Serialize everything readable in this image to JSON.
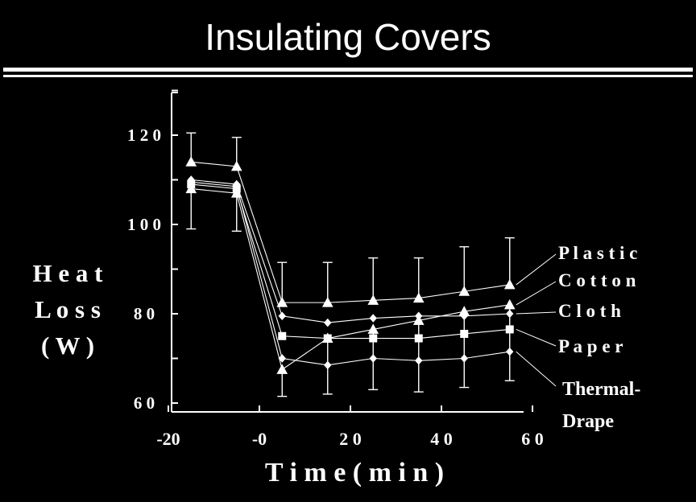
{
  "title": "Insulating Covers",
  "colors": {
    "background": "#000000",
    "foreground": "#ffffff"
  },
  "chart_data": {
    "type": "line",
    "title": "",
    "xlabel": "T i m e  ( m i n )",
    "ylabel_lines": [
      "H e a t",
      "L o s s",
      "( W )"
    ],
    "xlim": [
      -20,
      60
    ],
    "ylim": [
      58,
      130
    ],
    "xticks": [
      -20,
      0,
      20,
      40,
      60
    ],
    "xtick_labels": [
      "-20",
      "-0",
      "2 0",
      "4 0",
      "6 0"
    ],
    "yticks": [
      60,
      80,
      100,
      120
    ],
    "ytick_labels": [
      "6 0",
      "8 0",
      "1 0 0",
      "1 2 0"
    ],
    "grid": false,
    "legend": "right, labels at line ends",
    "x": [
      -15,
      -5,
      5,
      15,
      25,
      35,
      45,
      55
    ],
    "series": [
      {
        "name": "Plastic",
        "label_text": "P l a s t i c",
        "marker": "triangle",
        "values": [
          114,
          113,
          82.5,
          82.5,
          83,
          83.5,
          85,
          86.5
        ]
      },
      {
        "name": "Cotton",
        "label_text": "C o t t o n",
        "marker": "triangle",
        "values": [
          108,
          107,
          67.5,
          74.5,
          76.5,
          78.5,
          80.5,
          82
        ]
      },
      {
        "name": "Cloth",
        "label_text": "C l o t h",
        "marker": "diamond",
        "values": [
          110,
          109,
          79.5,
          78,
          79,
          79.5,
          79.5,
          80
        ]
      },
      {
        "name": "Paper",
        "label_text": "P a p e r",
        "marker": "square",
        "values": [
          109,
          108,
          75,
          74.5,
          74.5,
          74.5,
          75.5,
          76.5
        ]
      },
      {
        "name": "Thermal-Drape",
        "label_text": [
          "Thermal-",
          "Drape"
        ],
        "marker": "diamond",
        "values": [
          109.5,
          108.5,
          70,
          68.5,
          70,
          69.5,
          70,
          71.5
        ]
      }
    ],
    "error_bars": {
      "x": [
        -15,
        -5,
        5,
        15,
        25,
        35,
        45,
        55
      ],
      "upper": [
        120.5,
        119.5,
        91.5,
        91.5,
        92.5,
        92.5,
        95,
        97
      ],
      "lower": [
        99,
        98.5,
        61.5,
        62,
        63,
        62.5,
        63.5,
        65
      ]
    }
  }
}
